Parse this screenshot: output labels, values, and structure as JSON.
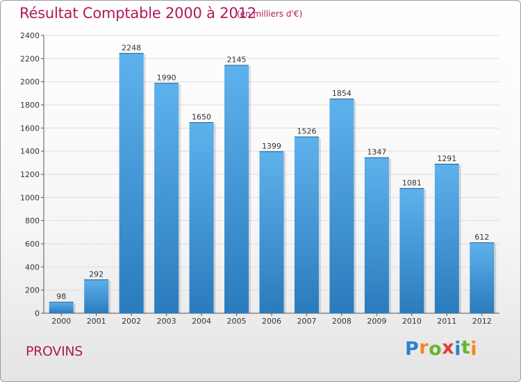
{
  "title": "Résultat Comptable 2000 à 2012",
  "subtitle": "(en milliers d'€)",
  "city": "PROVINS",
  "brand": {
    "letters": [
      "P",
      "r",
      "o",
      "x",
      "i",
      "t",
      "i"
    ],
    "colors": [
      "#2d7fd3",
      "#f08a1c",
      "#6ab42d",
      "#e23a30",
      "#2d7fd3",
      "#6ab42d",
      "#f08a1c"
    ]
  },
  "colors": {
    "title": "#b0195b",
    "bar_light": "#5eb2ec",
    "bar_dark": "#2a7bbd",
    "axis": "#555555",
    "grid": "#dddddd"
  },
  "chart_data": {
    "type": "bar",
    "title": "Résultat Comptable 2000 à 2012",
    "subtitle": "(en milliers d'€)",
    "xlabel": "",
    "ylabel": "",
    "categories": [
      "2000",
      "2001",
      "2002",
      "2003",
      "2004",
      "2005",
      "2006",
      "2007",
      "2008",
      "2009",
      "2010",
      "2011",
      "2012"
    ],
    "values": [
      98,
      292,
      2248,
      1990,
      1650,
      2145,
      1399,
      1526,
      1854,
      1347,
      1081,
      1291,
      612
    ],
    "ylim": [
      0,
      2400
    ],
    "yticks": [
      0,
      200,
      400,
      600,
      800,
      1000,
      1200,
      1400,
      1600,
      1800,
      2000,
      2200,
      2400
    ],
    "grid": true,
    "legend": "none"
  }
}
